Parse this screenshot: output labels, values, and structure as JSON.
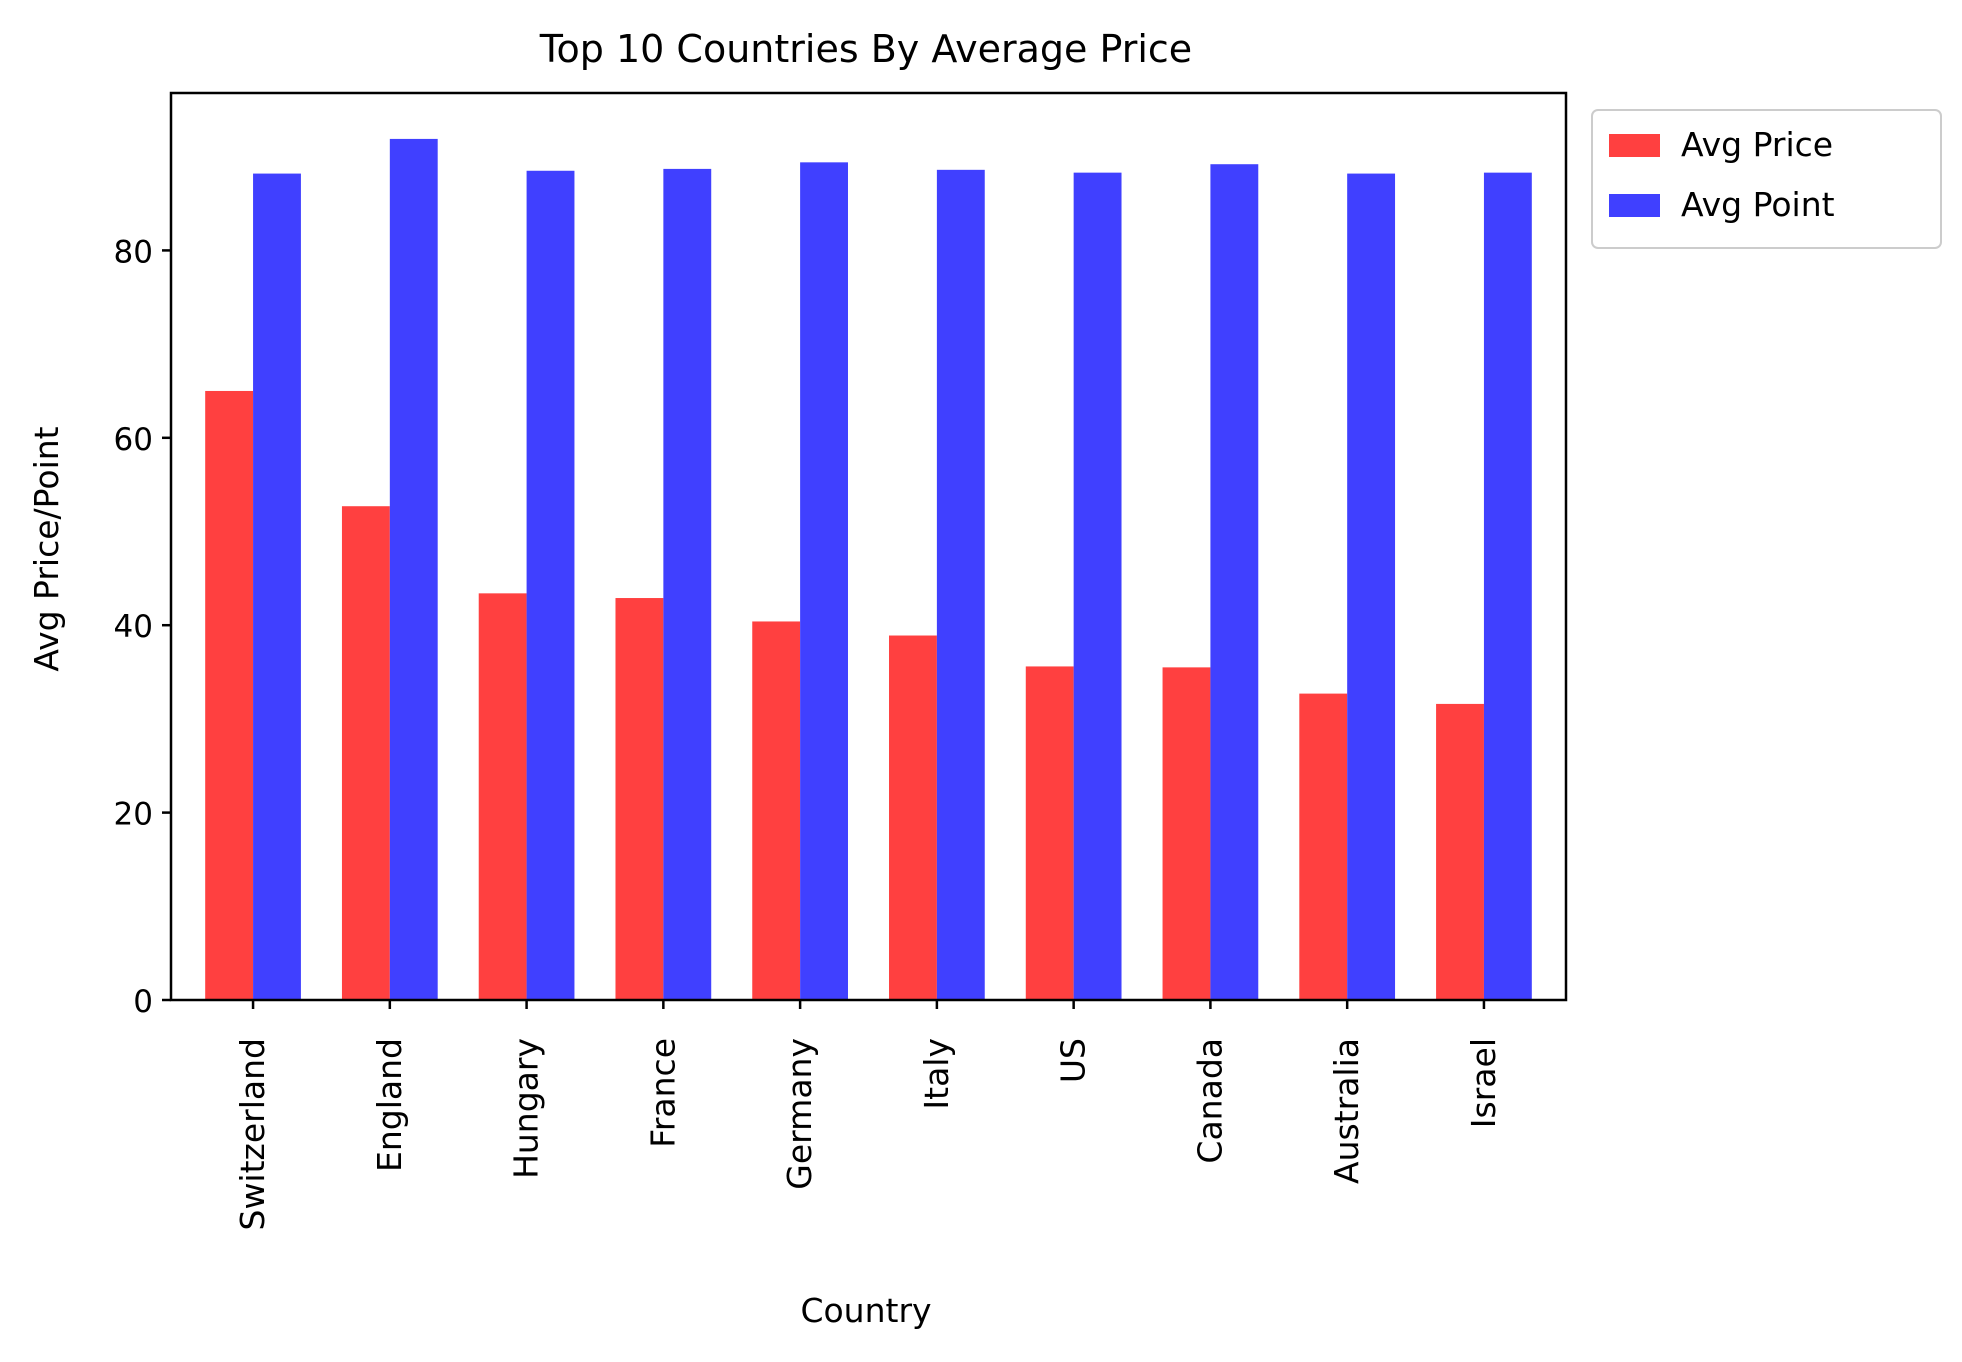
{
  "chart_data": {
    "type": "bar",
    "title": "Top 10 Countries By Average Price",
    "xlabel": "Country",
    "ylabel": "Avg Price/Point",
    "categories": [
      "Switzerland",
      "England",
      "Hungary",
      "France",
      "Germany",
      "Italy",
      "US",
      "Canada",
      "Australia",
      "Israel"
    ],
    "series": [
      {
        "name": "Avg Price",
        "color": "#ff4040",
        "values": [
          65.0,
          52.7,
          43.4,
          42.9,
          40.4,
          38.9,
          35.6,
          35.5,
          32.7,
          31.6
        ]
      },
      {
        "name": "Avg Point",
        "color": "#4040ff",
        "values": [
          88.2,
          91.9,
          88.5,
          88.7,
          89.4,
          88.6,
          88.3,
          89.2,
          88.2,
          88.3
        ]
      }
    ],
    "yticks": [
      0,
      20,
      40,
      60,
      80
    ],
    "ylim": [
      0,
      96.8
    ],
    "legend_position": "outside-top-right",
    "grid": false
  }
}
